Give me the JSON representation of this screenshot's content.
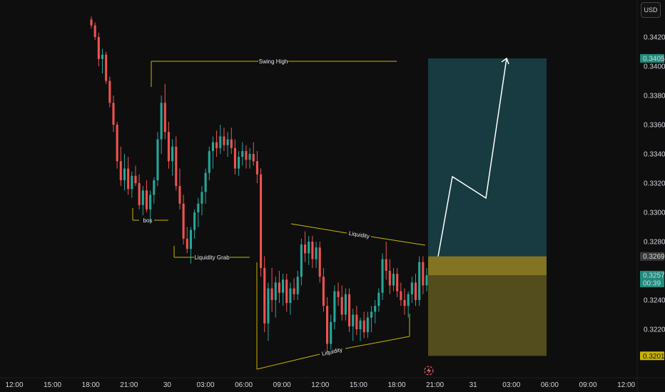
{
  "currency_button": "USD",
  "colors": {
    "bg": "#0e0e0e",
    "up": "#26a69a",
    "down": "#ef5350",
    "annotation": "#c8b400",
    "target_zone": "rgba(38,120,135,0.42)",
    "stop_zone": "rgba(140,128,40,0.55)",
    "arrow": "#ffffff"
  },
  "chart_data": {
    "type": "candlestick",
    "ylim": [
      0.3195,
      0.3432
    ],
    "y_ticks": [
      {
        "value": 0.342,
        "label": "0.34200"
      },
      {
        "value": 0.34,
        "label": "0.34000"
      },
      {
        "value": 0.338,
        "label": "0.33800"
      },
      {
        "value": 0.336,
        "label": "0.33600"
      },
      {
        "value": 0.334,
        "label": "0.33400"
      },
      {
        "value": 0.332,
        "label": "0.33200"
      },
      {
        "value": 0.33,
        "label": "0.33000"
      },
      {
        "value": 0.328,
        "label": "0.32800"
      },
      {
        "value": 0.324,
        "label": "0.32400"
      },
      {
        "value": 0.322,
        "label": "0.32200"
      }
    ],
    "x_ticks": [
      "12:00",
      "15:00",
      "18:00",
      "21:00",
      "30",
      "03:00",
      "06:00",
      "09:00",
      "12:00",
      "15:00",
      "18:00",
      "21:00",
      "31",
      "03:00",
      "06:00",
      "09:00",
      "12:00"
    ],
    "price_labels": [
      {
        "label": "0.34054",
        "value": 0.34054,
        "color": "#1e8c7c"
      },
      {
        "label": "0.32699",
        "value": 0.32699,
        "color": "#3a3a3a"
      },
      {
        "label": "0.32573",
        "value": 0.32573,
        "color": "#1e8c7c"
      },
      {
        "label": "00:39",
        "value": 0.32573,
        "color": "#1e8c7c"
      },
      {
        "label": "0.32018",
        "value": 0.32018,
        "color": "#c8b400"
      }
    ],
    "candles": [
      [
        0.3432,
        0.3434,
        0.3426,
        0.3428
      ],
      [
        0.3428,
        0.343,
        0.3418,
        0.342
      ],
      [
        0.342,
        0.3423,
        0.34,
        0.3405
      ],
      [
        0.3405,
        0.3412,
        0.3395,
        0.3408
      ],
      [
        0.3408,
        0.341,
        0.3388,
        0.339
      ],
      [
        0.339,
        0.3393,
        0.3372,
        0.3375
      ],
      [
        0.3375,
        0.338,
        0.3355,
        0.336
      ],
      [
        0.336,
        0.3362,
        0.333,
        0.3335
      ],
      [
        0.3335,
        0.3345,
        0.3318,
        0.3322
      ],
      [
        0.3322,
        0.334,
        0.3315,
        0.333
      ],
      [
        0.333,
        0.3338,
        0.3312,
        0.3316
      ],
      [
        0.3316,
        0.3328,
        0.331,
        0.3325
      ],
      [
        0.3325,
        0.3332,
        0.3318,
        0.332
      ],
      [
        0.332,
        0.3326,
        0.3302,
        0.3305
      ],
      [
        0.3305,
        0.3318,
        0.3298,
        0.3315
      ],
      [
        0.3315,
        0.3322,
        0.33,
        0.3302
      ],
      [
        0.3302,
        0.3315,
        0.3292,
        0.3312
      ],
      [
        0.3312,
        0.3324,
        0.3306,
        0.3322
      ],
      [
        0.3322,
        0.3355,
        0.3318,
        0.335
      ],
      [
        0.335,
        0.338,
        0.334,
        0.3375
      ],
      [
        0.3375,
        0.3388,
        0.335,
        0.3355
      ],
      [
        0.3355,
        0.3362,
        0.333,
        0.3335
      ],
      [
        0.3335,
        0.335,
        0.3325,
        0.3345
      ],
      [
        0.3345,
        0.3352,
        0.3315,
        0.3318
      ],
      [
        0.3318,
        0.333,
        0.3302,
        0.3306
      ],
      [
        0.3306,
        0.3312,
        0.3278,
        0.3282
      ],
      [
        0.3282,
        0.329,
        0.3272,
        0.3275
      ],
      [
        0.3275,
        0.329,
        0.3265,
        0.3288
      ],
      [
        0.3288,
        0.3302,
        0.3282,
        0.33
      ],
      [
        0.33,
        0.331,
        0.329,
        0.3306
      ],
      [
        0.3306,
        0.3318,
        0.3298,
        0.3314
      ],
      [
        0.3314,
        0.333,
        0.3306,
        0.3327
      ],
      [
        0.3327,
        0.3345,
        0.3322,
        0.3342
      ],
      [
        0.3342,
        0.3352,
        0.333,
        0.3348
      ],
      [
        0.3348,
        0.3356,
        0.3338,
        0.3344
      ],
      [
        0.3344,
        0.336,
        0.334,
        0.3352
      ],
      [
        0.3352,
        0.3358,
        0.3342,
        0.3346
      ],
      [
        0.3346,
        0.3355,
        0.3338,
        0.335
      ],
      [
        0.335,
        0.3358,
        0.334,
        0.3344
      ],
      [
        0.3344,
        0.335,
        0.3326,
        0.333
      ],
      [
        0.333,
        0.3342,
        0.3325,
        0.3338
      ],
      [
        0.3338,
        0.3348,
        0.3332,
        0.3342
      ],
      [
        0.3342,
        0.3346,
        0.333,
        0.3336
      ],
      [
        0.3336,
        0.3344,
        0.333,
        0.334
      ],
      [
        0.334,
        0.3348,
        0.3332,
        0.3335
      ],
      [
        0.3335,
        0.3342,
        0.332,
        0.3326
      ],
      [
        0.3326,
        0.333,
        0.3256,
        0.3262
      ],
      [
        0.3262,
        0.327,
        0.3218,
        0.3224
      ],
      [
        0.3224,
        0.3252,
        0.3212,
        0.3248
      ],
      [
        0.3248,
        0.3262,
        0.3232,
        0.324
      ],
      [
        0.324,
        0.3256,
        0.3228,
        0.3252
      ],
      [
        0.3252,
        0.326,
        0.3238,
        0.3245
      ],
      [
        0.3245,
        0.3258,
        0.3236,
        0.3254
      ],
      [
        0.3254,
        0.3258,
        0.3232,
        0.3238
      ],
      [
        0.3238,
        0.3252,
        0.323,
        0.3248
      ],
      [
        0.3248,
        0.3255,
        0.324,
        0.3244
      ],
      [
        0.3244,
        0.326,
        0.324,
        0.3256
      ],
      [
        0.3256,
        0.3282,
        0.325,
        0.3278
      ],
      [
        0.3278,
        0.3287,
        0.3266,
        0.3272
      ],
      [
        0.3272,
        0.3284,
        0.3264,
        0.328
      ],
      [
        0.328,
        0.3284,
        0.3262,
        0.3268
      ],
      [
        0.3268,
        0.328,
        0.3262,
        0.3276
      ],
      [
        0.3276,
        0.328,
        0.3252,
        0.3256
      ],
      [
        0.3256,
        0.3262,
        0.3232,
        0.3236
      ],
      [
        0.3236,
        0.3242,
        0.3204,
        0.321
      ],
      [
        0.321,
        0.323,
        0.3206,
        0.3225
      ],
      [
        0.3225,
        0.325,
        0.322,
        0.3246
      ],
      [
        0.3246,
        0.3252,
        0.3236,
        0.3242
      ],
      [
        0.3242,
        0.325,
        0.3226,
        0.323
      ],
      [
        0.323,
        0.3248,
        0.3226,
        0.3244
      ],
      [
        0.3244,
        0.3248,
        0.3218,
        0.3222
      ],
      [
        0.3222,
        0.3234,
        0.3212,
        0.323
      ],
      [
        0.323,
        0.3236,
        0.3216,
        0.322
      ],
      [
        0.322,
        0.3228,
        0.3212,
        0.3226
      ],
      [
        0.3226,
        0.3232,
        0.3214,
        0.3218
      ],
      [
        0.3218,
        0.3232,
        0.3214,
        0.3228
      ],
      [
        0.3228,
        0.3236,
        0.3218,
        0.3232
      ],
      [
        0.3232,
        0.324,
        0.3224,
        0.3236
      ],
      [
        0.3236,
        0.3248,
        0.3232,
        0.3245
      ],
      [
        0.3245,
        0.3272,
        0.324,
        0.3268
      ],
      [
        0.3268,
        0.328,
        0.3254,
        0.326
      ],
      [
        0.326,
        0.3268,
        0.3244,
        0.325
      ],
      [
        0.325,
        0.3262,
        0.3246,
        0.3258
      ],
      [
        0.3258,
        0.3262,
        0.3242,
        0.3246
      ],
      [
        0.3246,
        0.3252,
        0.3236,
        0.324
      ],
      [
        0.324,
        0.3248,
        0.323,
        0.3236
      ],
      [
        0.3236,
        0.3246,
        0.3228,
        0.3244
      ],
      [
        0.3244,
        0.3256,
        0.3238,
        0.3252
      ],
      [
        0.3252,
        0.3258,
        0.3236,
        0.324
      ],
      [
        0.324,
        0.327,
        0.3236,
        0.3266
      ],
      [
        0.3266,
        0.327,
        0.3244,
        0.325
      ],
      [
        0.325,
        0.3262,
        0.3246,
        0.3257
      ]
    ],
    "annotations": {
      "swing_high": "Swing High",
      "bos": "bos",
      "liquidity_grab": "Liquidity Grab",
      "liquidity_top": "Liquidity",
      "liquidity_bottom": "Liquidity"
    },
    "position": {
      "entry": 0.32699,
      "target": 0.34054,
      "stop": 0.32018
    },
    "projection_path": [
      0.32699,
      0.33245,
      0.33098,
      0.34054
    ]
  }
}
